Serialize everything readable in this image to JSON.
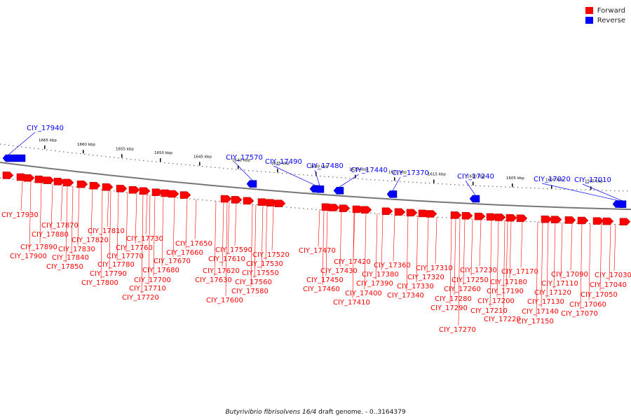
{
  "legend": {
    "forward_label": "Forward",
    "reverse_label": "Reverse",
    "forward_color": "#ff0000",
    "reverse_color": "#0000ff"
  },
  "caption": {
    "organism": "Butyrivibrio fibrisolvens 16/4",
    "suffix": "draft genome. - 0..3164379"
  },
  "scale_ticks": [
    "1665 kbp",
    "1660 kbp",
    "1655 kbp",
    "1650 kbp",
    "1645 kbp",
    "1640 kbp",
    "1635 kbp",
    "1630 kbp",
    "1625 kbp",
    "1620 kbp",
    "1615 kbp",
    "1610 kbp",
    "1605 kbp",
    "1600 kbp",
    "1595 kbp"
  ],
  "reverse_genes": [
    "CIY_17940",
    "CIY_17570",
    "CIY_17490",
    "CIY_17480",
    "CIY_17440",
    "CIY_17370",
    "CIY_17240",
    "CIY_17020",
    "CIY_17010"
  ],
  "forward_genes": [
    "CIY_17930",
    "CIY_17900",
    "CIY_17890",
    "CIY_17880",
    "CIY_17870",
    "CIY_17850",
    "CIY_17840",
    "CIY_17830",
    "CIY_17820",
    "CIY_17810",
    "CIY_17800",
    "CIY_17790",
    "CIY_17780",
    "CIY_17770",
    "CIY_17760",
    "CIY_17730",
    "CIY_17720",
    "CIY_17710",
    "CIY_17700",
    "CIY_17680",
    "CIY_17670",
    "CIY_17660",
    "CIY_17650",
    "CIY_17630",
    "CIY_17620",
    "CIY_17610",
    "CIY_17600",
    "CIY_17590",
    "CIY_17580",
    "CIY_17560",
    "CIY_17550",
    "CIY_17530",
    "CIY_17520",
    "CIY_17470",
    "CIY_17460",
    "CIY_17450",
    "CIY_17430",
    "CIY_17420",
    "CIY_17410",
    "CIY_17400",
    "CIY_17390",
    "CIY_17380",
    "CIY_17360",
    "CIY_17340",
    "CIY_17330",
    "CIY_17320",
    "CIY_17310",
    "CIY_17290",
    "CIY_17280",
    "CIY_17270",
    "CIY_17260",
    "CIY_17250",
    "CIY_17230",
    "CIY_17220",
    "CIY_17210",
    "CIY_17200",
    "CIY_17190",
    "CIY_17180",
    "CIY_17170",
    "CIY_17150",
    "CIY_17140",
    "CIY_17130",
    "CIY_17120",
    "CIY_17110",
    "CIY_17090",
    "CIY_17070",
    "CIY_17060",
    "CIY_17050",
    "CIY_17040",
    "CIY_17030"
  ]
}
